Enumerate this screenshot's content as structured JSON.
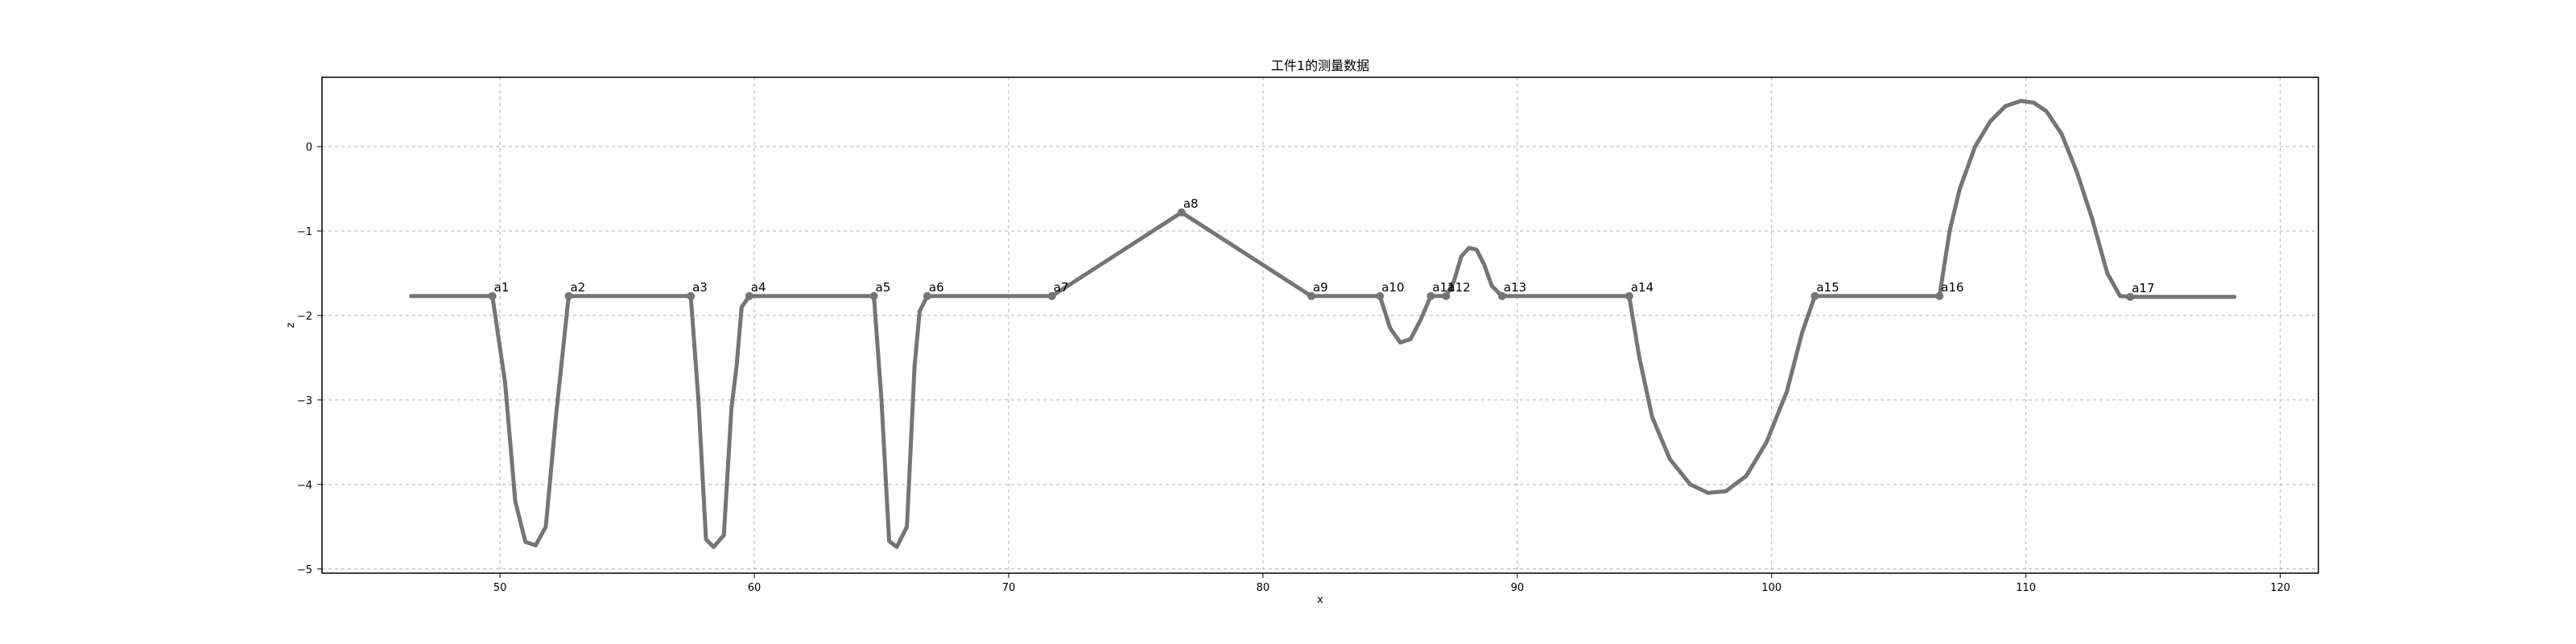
{
  "chart_data": {
    "type": "line",
    "title": "工件1的测量数据",
    "xlabel": "x",
    "ylabel": "z",
    "xlim": [
      43,
      121.5
    ],
    "ylim": [
      -5.05,
      0.82
    ],
    "grid": true,
    "xticks": [
      50,
      60,
      70,
      80,
      90,
      100,
      110,
      120
    ],
    "yticks": [
      0,
      -1,
      -2,
      -3,
      -4,
      -5
    ],
    "line_color": "#757575",
    "marker_color": "#757575",
    "series": [
      {
        "x": [
          46.5,
          49.7,
          50.2,
          50.6,
          51.0,
          51.4,
          51.8,
          52.2,
          52.7,
          57.5,
          57.8,
          58.1,
          58.4,
          58.8,
          59.1,
          59.3,
          59.5,
          59.8,
          64.7,
          65.0,
          65.3,
          65.6,
          66.0,
          66.3,
          66.5,
          66.8,
          71.7,
          76.8,
          81.9,
          84.6,
          85.0,
          85.4,
          85.8,
          86.2,
          86.6,
          87.2,
          87.5,
          87.8,
          88.1,
          88.4,
          88.7,
          89.0,
          89.4,
          94.4,
          94.8,
          95.3,
          96.0,
          96.8,
          97.5,
          98.2,
          99.0,
          99.8,
          100.6,
          101.2,
          101.7,
          106.6,
          107.0,
          107.4,
          108.0,
          108.6,
          109.2,
          109.8,
          110.3,
          110.8,
          111.4,
          112.0,
          112.6,
          113.2,
          113.7,
          114.1,
          118.2
        ],
        "y": [
          -1.77,
          -1.77,
          -2.8,
          -4.2,
          -4.68,
          -4.72,
          -4.5,
          -3.2,
          -1.77,
          -1.77,
          -3.0,
          -4.65,
          -4.74,
          -4.6,
          -3.1,
          -2.6,
          -1.9,
          -1.77,
          -1.77,
          -3.0,
          -4.67,
          -4.74,
          -4.5,
          -2.6,
          -1.95,
          -1.77,
          -1.77,
          -0.78,
          -1.77,
          -1.77,
          -2.15,
          -2.32,
          -2.28,
          -2.05,
          -1.77,
          -1.77,
          -1.6,
          -1.3,
          -1.2,
          -1.22,
          -1.4,
          -1.65,
          -1.77,
          -1.77,
          -2.5,
          -3.2,
          -3.7,
          -4.0,
          -4.1,
          -4.08,
          -3.9,
          -3.5,
          -2.9,
          -2.2,
          -1.77,
          -1.77,
          -1.0,
          -0.5,
          0.0,
          0.3,
          0.48,
          0.54,
          0.52,
          0.42,
          0.15,
          -0.3,
          -0.85,
          -1.5,
          -1.77,
          -1.78,
          -1.78
        ]
      }
    ],
    "points": [
      {
        "label": "a1",
        "x": 49.7,
        "y": -1.77
      },
      {
        "label": "a2",
        "x": 52.7,
        "y": -1.77
      },
      {
        "label": "a3",
        "x": 57.5,
        "y": -1.77
      },
      {
        "label": "a4",
        "x": 59.8,
        "y": -1.77
      },
      {
        "label": "a5",
        "x": 64.7,
        "y": -1.77
      },
      {
        "label": "a6",
        "x": 66.8,
        "y": -1.77
      },
      {
        "label": "a7",
        "x": 71.7,
        "y": -1.77
      },
      {
        "label": "a8",
        "x": 76.8,
        "y": -0.78
      },
      {
        "label": "a9",
        "x": 81.9,
        "y": -1.77
      },
      {
        "label": "a10",
        "x": 84.6,
        "y": -1.77
      },
      {
        "label": "a11",
        "x": 86.6,
        "y": -1.77
      },
      {
        "label": "a12",
        "x": 87.2,
        "y": -1.77
      },
      {
        "label": "a13",
        "x": 89.4,
        "y": -1.77
      },
      {
        "label": "a14",
        "x": 94.4,
        "y": -1.77
      },
      {
        "label": "a15",
        "x": 101.7,
        "y": -1.77
      },
      {
        "label": "a16",
        "x": 106.6,
        "y": -1.77
      },
      {
        "label": "a17",
        "x": 114.1,
        "y": -1.78
      }
    ]
  }
}
